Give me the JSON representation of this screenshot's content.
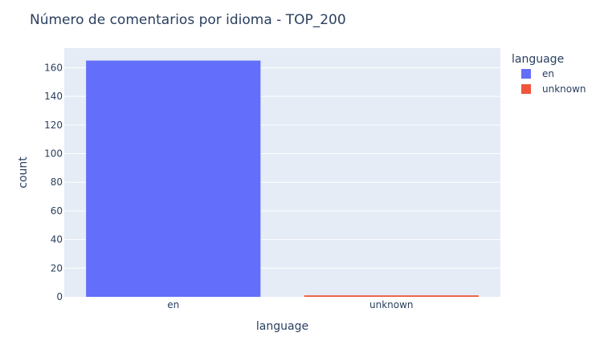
{
  "chart_data": {
    "type": "bar",
    "title": "Número de comentarios por idioma - TOP_200",
    "xlabel": "language",
    "ylabel": "count",
    "categories": [
      "en",
      "unknown"
    ],
    "series": [
      {
        "name": "en",
        "values": [
          165,
          null
        ],
        "color": "#636efa"
      },
      {
        "name": "unknown",
        "values": [
          null,
          1
        ],
        "color": "#ef553b"
      }
    ],
    "ylim": [
      0,
      173.7
    ],
    "yticks": [
      0,
      20,
      40,
      60,
      80,
      100,
      120,
      140,
      160
    ],
    "legend": {
      "title": "language",
      "placement": "top-right"
    },
    "grid": true,
    "plot_background": "#e5ecf6"
  }
}
